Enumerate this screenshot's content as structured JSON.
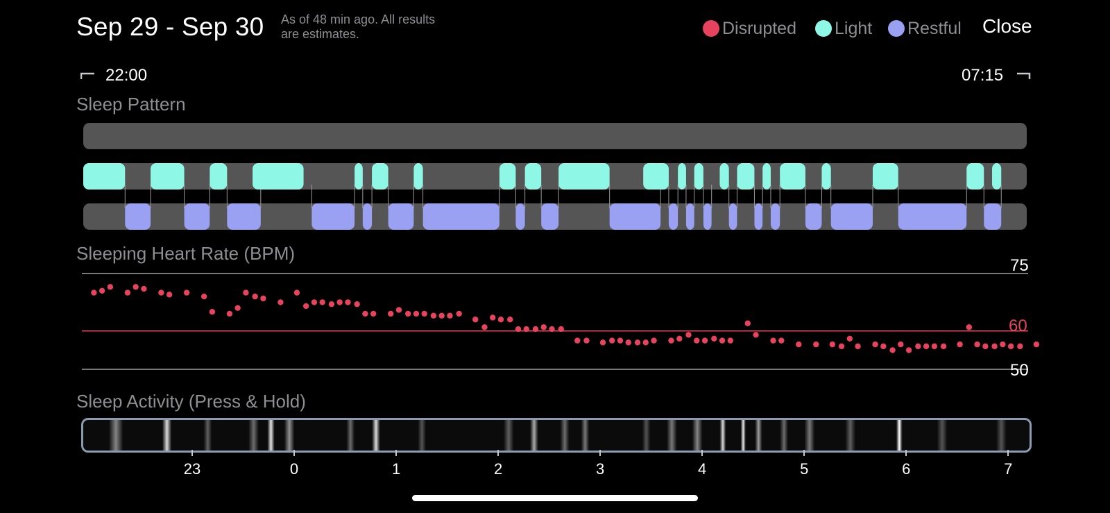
{
  "header": {
    "title": "Sep 29 - Sep 30",
    "as_of_line1": "As of 48 min ago. All results",
    "as_of_line2": "are estimates.",
    "close_label": "Close"
  },
  "legend": [
    {
      "label": "Disrupted",
      "color": "#e8435e"
    },
    {
      "label": "Light",
      "color": "#8ef7e6"
    },
    {
      "label": "Restful",
      "color": "#9aa0f2"
    }
  ],
  "time_range": {
    "start": "22:00",
    "end": "07:15"
  },
  "sleep_pattern": {
    "title": "Sleep Pattern",
    "colors": {
      "track": "#555555",
      "light": "#8ef7e6",
      "restful": "#9aa0f2"
    },
    "light_segments": [
      [
        22.0,
        22.41
      ],
      [
        22.66,
        22.99
      ],
      [
        23.24,
        23.41
      ],
      [
        23.66,
        24.16
      ],
      [
        24.66,
        24.74
      ],
      [
        24.83,
        24.99
      ],
      [
        25.24,
        25.33
      ],
      [
        26.08,
        26.24
      ],
      [
        26.33,
        26.49
      ],
      [
        26.66,
        27.16
      ],
      [
        27.49,
        27.74
      ],
      [
        27.83,
        27.91
      ],
      [
        27.99,
        28.08
      ],
      [
        28.24,
        28.33
      ],
      [
        28.41,
        28.58
      ],
      [
        28.66,
        28.74
      ],
      [
        28.83,
        29.08
      ],
      [
        29.24,
        29.33
      ],
      [
        29.74,
        29.99
      ],
      [
        30.66,
        30.83
      ],
      [
        30.91,
        31.0
      ]
    ],
    "restful_segments": [
      [
        22.41,
        22.66
      ],
      [
        22.99,
        23.24
      ],
      [
        23.41,
        23.74
      ],
      [
        24.24,
        24.66
      ],
      [
        24.74,
        24.83
      ],
      [
        24.99,
        25.24
      ],
      [
        25.33,
        26.08
      ],
      [
        26.24,
        26.33
      ],
      [
        26.49,
        26.66
      ],
      [
        27.16,
        27.66
      ],
      [
        27.74,
        27.83
      ],
      [
        27.91,
        27.99
      ],
      [
        28.08,
        28.16
      ],
      [
        28.33,
        28.41
      ],
      [
        28.58,
        28.66
      ],
      [
        28.74,
        28.83
      ],
      [
        29.08,
        29.24
      ],
      [
        29.33,
        29.74
      ],
      [
        29.99,
        30.66
      ],
      [
        30.83,
        31.0
      ]
    ]
  },
  "heart_rate": {
    "title": "Sleeping Heart Rate (BPM)",
    "scale": [
      {
        "value": 75,
        "label": "75",
        "color": "#ffffff",
        "line": "#a0a0a0"
      },
      {
        "value": 60,
        "label": "60",
        "color": "#e8435e",
        "line": "#e8435e"
      },
      {
        "value": 50,
        "label": "50",
        "color": "#ffffff",
        "line": "#a0a0a0"
      }
    ],
    "dot_color": "#e8435e",
    "points": [
      [
        22.05,
        70
      ],
      [
        22.13,
        70.5
      ],
      [
        22.21,
        71.5
      ],
      [
        22.38,
        70
      ],
      [
        22.46,
        71.5
      ],
      [
        22.54,
        71
      ],
      [
        22.71,
        70
      ],
      [
        22.79,
        69.5
      ],
      [
        22.96,
        70
      ],
      [
        23.13,
        69
      ],
      [
        23.21,
        65
      ],
      [
        23.38,
        64.5
      ],
      [
        23.46,
        66
      ],
      [
        23.54,
        70
      ],
      [
        23.63,
        69
      ],
      [
        23.71,
        68.5
      ],
      [
        23.88,
        67.5
      ],
      [
        24.04,
        70
      ],
      [
        24.13,
        66.5
      ],
      [
        24.21,
        67.5
      ],
      [
        24.29,
        67.5
      ],
      [
        24.38,
        67
      ],
      [
        24.46,
        67.5
      ],
      [
        24.54,
        67.5
      ],
      [
        24.63,
        67
      ],
      [
        24.71,
        64.5
      ],
      [
        24.79,
        64.5
      ],
      [
        24.96,
        64.5
      ],
      [
        25.04,
        65.5
      ],
      [
        25.13,
        64.5
      ],
      [
        25.21,
        64.5
      ],
      [
        25.29,
        64.5
      ],
      [
        25.38,
        64
      ],
      [
        25.46,
        64
      ],
      [
        25.54,
        64
      ],
      [
        25.63,
        64.5
      ],
      [
        25.79,
        63
      ],
      [
        25.88,
        61
      ],
      [
        25.96,
        63.5
      ],
      [
        26.04,
        63
      ],
      [
        26.13,
        63
      ],
      [
        26.21,
        60.5
      ],
      [
        26.29,
        60.5
      ],
      [
        26.38,
        60.5
      ],
      [
        26.46,
        61
      ],
      [
        26.54,
        60.5
      ],
      [
        26.63,
        60.5
      ],
      [
        26.79,
        57.5
      ],
      [
        26.88,
        57.5
      ],
      [
        27.04,
        57
      ],
      [
        27.13,
        57.5
      ],
      [
        27.21,
        57.5
      ],
      [
        27.29,
        57
      ],
      [
        27.38,
        57
      ],
      [
        27.46,
        57
      ],
      [
        27.54,
        57.5
      ],
      [
        27.71,
        57.5
      ],
      [
        27.79,
        58
      ],
      [
        27.88,
        59
      ],
      [
        27.96,
        57.5
      ],
      [
        28.04,
        57.5
      ],
      [
        28.13,
        58
      ],
      [
        28.21,
        57.5
      ],
      [
        28.29,
        57.5
      ],
      [
        28.46,
        62
      ],
      [
        28.54,
        59
      ],
      [
        28.71,
        57.5
      ],
      [
        28.79,
        57.5
      ],
      [
        28.96,
        56.5
      ],
      [
        29.13,
        56.5
      ],
      [
        29.29,
        56.5
      ],
      [
        29.38,
        56
      ],
      [
        29.46,
        58
      ],
      [
        29.54,
        56
      ],
      [
        29.71,
        56.5
      ],
      [
        29.79,
        56
      ],
      [
        29.88,
        55
      ],
      [
        29.96,
        56.5
      ],
      [
        30.04,
        55
      ],
      [
        30.13,
        56
      ],
      [
        30.21,
        56
      ],
      [
        30.29,
        56
      ],
      [
        30.38,
        56
      ],
      [
        30.54,
        56.5
      ],
      [
        30.63,
        61
      ],
      [
        30.71,
        56.5
      ],
      [
        30.79,
        56
      ],
      [
        30.88,
        56
      ],
      [
        30.96,
        56.5
      ],
      [
        31.04,
        56
      ],
      [
        31.13,
        56
      ],
      [
        31.29,
        56.5
      ]
    ]
  },
  "activity": {
    "title": "Sleep Activity (Press & Hold)",
    "bright_peaks": [
      [
        22.3,
        0.5,
        0.14
      ],
      [
        22.8,
        0.85,
        0.09
      ],
      [
        23.2,
        0.35,
        0.08
      ],
      [
        23.65,
        0.4,
        0.1
      ],
      [
        23.82,
        0.9,
        0.07
      ],
      [
        24.0,
        0.55,
        0.1
      ],
      [
        24.6,
        0.4,
        0.08
      ],
      [
        24.85,
        0.85,
        0.08
      ],
      [
        25.3,
        0.3,
        0.08
      ],
      [
        26.15,
        0.35,
        0.1
      ],
      [
        26.4,
        0.65,
        0.08
      ],
      [
        26.7,
        0.4,
        0.09
      ],
      [
        26.9,
        0.45,
        0.08
      ],
      [
        27.5,
        0.3,
        0.08
      ],
      [
        27.75,
        0.45,
        0.1
      ],
      [
        28.0,
        0.5,
        0.1
      ],
      [
        28.25,
        0.85,
        0.06
      ],
      [
        28.45,
        0.9,
        0.05
      ],
      [
        28.6,
        0.6,
        0.07
      ],
      [
        28.85,
        0.4,
        0.08
      ],
      [
        29.1,
        0.45,
        0.1
      ],
      [
        29.5,
        0.35,
        0.1
      ],
      [
        29.98,
        1.0,
        0.06
      ],
      [
        30.4,
        0.3,
        0.1
      ],
      [
        30.98,
        0.3,
        0.1
      ]
    ],
    "ticks": [
      "23",
      "0",
      "1",
      "2",
      "3",
      "4",
      "5",
      "6",
      "7"
    ]
  },
  "icons": {
    "bracket_start": "⌐ bracket-start-icon",
    "bracket_end": "¬ bracket-end-icon"
  }
}
